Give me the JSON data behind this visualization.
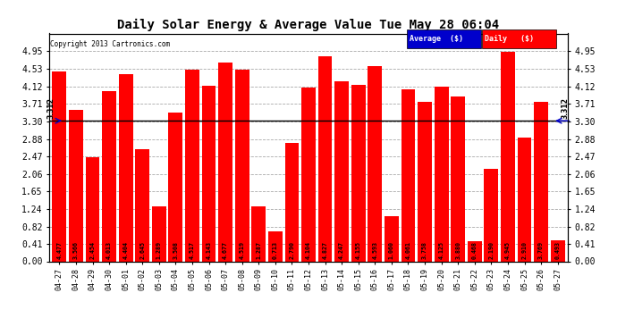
{
  "title": "Daily Solar Energy & Average Value Tue May 28 06:04",
  "copyright": "Copyright 2013 Cartronics.com",
  "average_value": 3.312,
  "average_label": "3.312",
  "bar_color": "#FF0000",
  "average_line_color": "#000000",
  "categories": [
    "04-27",
    "04-28",
    "04-29",
    "04-30",
    "05-01",
    "05-02",
    "05-03",
    "05-04",
    "05-05",
    "05-06",
    "05-07",
    "05-08",
    "05-09",
    "05-10",
    "05-11",
    "05-12",
    "05-13",
    "05-14",
    "05-15",
    "05-16",
    "05-17",
    "05-18",
    "05-19",
    "05-20",
    "05-21",
    "05-22",
    "05-23",
    "05-24",
    "05-25",
    "05-26",
    "05-27"
  ],
  "values": [
    4.477,
    3.566,
    2.454,
    4.013,
    4.404,
    2.645,
    1.289,
    3.508,
    4.517,
    4.143,
    4.677,
    4.519,
    1.287,
    0.713,
    2.79,
    4.104,
    4.827,
    4.247,
    4.155,
    4.593,
    1.06,
    4.061,
    3.758,
    4.125,
    3.88,
    0.468,
    2.19,
    4.945,
    2.91,
    3.769,
    0.493
  ],
  "ylim": [
    0,
    5.37
  ],
  "yticks": [
    0.0,
    0.41,
    0.82,
    1.24,
    1.65,
    2.06,
    2.47,
    2.88,
    3.3,
    3.71,
    4.12,
    4.53,
    4.95
  ],
  "background_color": "#FFFFFF",
  "grid_color": "#AAAAAA",
  "legend_avg_bg": "#0000CC",
  "legend_daily_bg": "#FF0000",
  "legend_avg_text": "Average  ($)",
  "legend_daily_text": "Daily   ($)"
}
